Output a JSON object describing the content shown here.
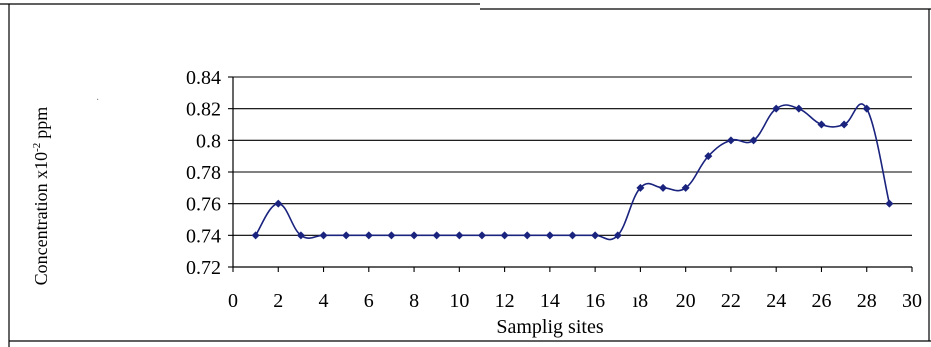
{
  "chart_data": {
    "type": "line",
    "xlabel": "Samplig sites",
    "ylabel": "Concentration x10",
    "ylabel_exponent": "-2",
    "ylabel_unit": "ppm",
    "xlim": [
      0,
      30
    ],
    "ylim": [
      0.72,
      0.84
    ],
    "x_ticks": [
      0,
      2,
      4,
      6,
      8,
      10,
      12,
      14,
      16,
      18,
      20,
      22,
      24,
      26,
      28,
      30
    ],
    "x_tick_labels": [
      "0",
      "2",
      "4",
      "6",
      "8",
      "10",
      "12",
      "14",
      "16",
      "ı8",
      "20",
      "22",
      "24",
      "26",
      "28",
      "30"
    ],
    "y_ticks": [
      0.72,
      0.74,
      0.76,
      0.78,
      0.8,
      0.82,
      0.84
    ],
    "y_tick_labels": [
      "0.72",
      "0.74",
      "0.76",
      "0.78",
      "0.8",
      "0.82",
      "0.84"
    ],
    "grid": "horizontal",
    "legend": "none",
    "color": "#1a237e",
    "series": [
      {
        "x": [
          1,
          2,
          3,
          4,
          5,
          6,
          7,
          8,
          9,
          10,
          11,
          12,
          13,
          14,
          15,
          16,
          17,
          18,
          19,
          20,
          21,
          22,
          23,
          24,
          25,
          26,
          27,
          28,
          29
        ],
        "values": [
          0.74,
          0.76,
          0.74,
          0.74,
          0.74,
          0.74,
          0.74,
          0.74,
          0.74,
          0.74,
          0.74,
          0.74,
          0.74,
          0.74,
          0.74,
          0.74,
          0.74,
          0.77,
          0.77,
          0.77,
          0.79,
          0.8,
          0.8,
          0.82,
          0.82,
          0.81,
          0.81,
          0.82,
          0.76
        ]
      }
    ]
  }
}
